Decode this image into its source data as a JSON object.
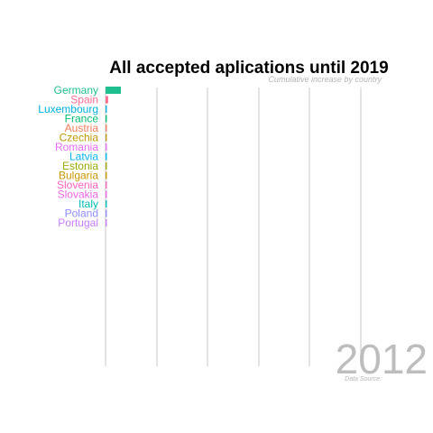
{
  "chart_data": {
    "type": "bar",
    "orientation": "horizontal",
    "title": "All accepted aplications until 2019",
    "subtitle": "Cumulative increase by country",
    "year_label": "2012",
    "caption": "Data Source:",
    "categories": [
      "Germany",
      "Spain",
      "Luxembourg",
      "France",
      "Austria",
      "Czechia",
      "Romania",
      "Latvia",
      "Estonia",
      "Bulgaria",
      "Slovenia",
      "Slovakia",
      "Italy",
      "Poland",
      "Portugal"
    ],
    "values": [
      6,
      1,
      0.5,
      0.5,
      0.5,
      0.5,
      0.5,
      0.5,
      0.5,
      0.5,
      0.5,
      0.5,
      0.5,
      0.5,
      0.5
    ],
    "colors": [
      "#1fbf8f",
      "#ff6c91",
      "#00b1e0",
      "#00be70",
      "#f27d5e",
      "#bd9a00",
      "#e76bf3",
      "#00b4ef",
      "#9aa800",
      "#c79800",
      "#ff62bc",
      "#f066e9",
      "#00bbb0",
      "#8e8cff",
      "#c77cff"
    ],
    "xlim": [
      0,
      100
    ],
    "grid": true,
    "legend": "none"
  }
}
